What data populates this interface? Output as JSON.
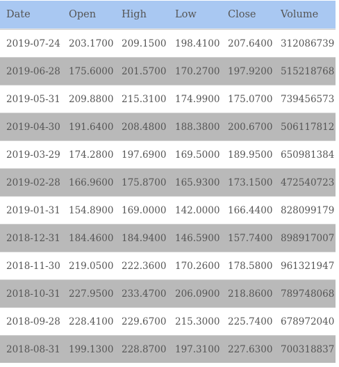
{
  "table": {
    "headers": [
      "Date",
      "Open",
      "High",
      "Low",
      "Close",
      "Volume"
    ],
    "rows": [
      [
        "2019-07-24",
        "203.1700",
        "209.1500",
        "198.4100",
        "207.6400",
        "312086739"
      ],
      [
        "2019-06-28",
        "175.6000",
        "201.5700",
        "170.2700",
        "197.9200",
        "515218768"
      ],
      [
        "2019-05-31",
        "209.8800",
        "215.3100",
        "174.9900",
        "175.0700",
        "739456573"
      ],
      [
        "2019-04-30",
        "191.6400",
        "208.4800",
        "188.3800",
        "200.6700",
        "506117812"
      ],
      [
        "2019-03-29",
        "174.2800",
        "197.6900",
        "169.5000",
        "189.9500",
        "650981384"
      ],
      [
        "2019-02-28",
        "166.9600",
        "175.8700",
        "165.9300",
        "173.1500",
        "472540723"
      ],
      [
        "2019-01-31",
        "154.8900",
        "169.0000",
        "142.0000",
        "166.4400",
        "828099179"
      ],
      [
        "2018-12-31",
        "184.4600",
        "184.9400",
        "146.5900",
        "157.7400",
        "898917007"
      ],
      [
        "2018-11-30",
        "219.0500",
        "222.3600",
        "170.2600",
        "178.5800",
        "961321947"
      ],
      [
        "2018-10-31",
        "227.9500",
        "233.4700",
        "206.0900",
        "218.8600",
        "789748068"
      ],
      [
        "2018-09-28",
        "228.4100",
        "229.6700",
        "215.3000",
        "225.7400",
        "678972040"
      ],
      [
        "2018-08-31",
        "199.1300",
        "228.8700",
        "197.3100",
        "227.6300",
        "700318837"
      ]
    ]
  },
  "colors": {
    "header_bg": "#a9c8f2",
    "row_odd_bg": "#ffffff",
    "row_even_bg": "#b9b9b9",
    "text": "#555555"
  }
}
